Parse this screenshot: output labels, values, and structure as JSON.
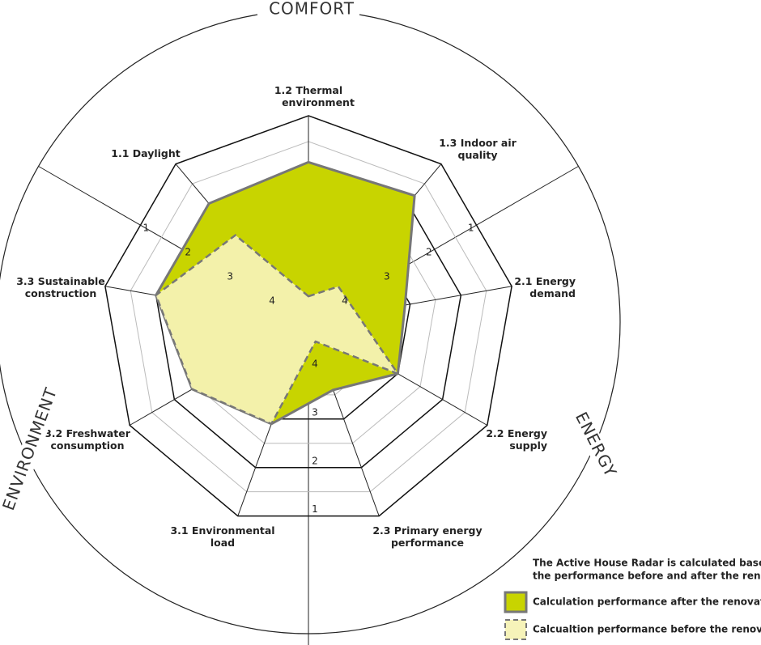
{
  "chart_data": {
    "type": "radar",
    "categories": [
      [
        "1.2 Thermal",
        "environment"
      ],
      [
        "1.3 Indoor air",
        "quality"
      ],
      [
        "2.1 Energy",
        "demand"
      ],
      [
        "2.2 Energy",
        "supply"
      ],
      [
        "2.3 Primary energy",
        "performance"
      ],
      [
        "3.1 Environmental",
        "load"
      ],
      [
        "3.2 Freshwater",
        "consumption"
      ],
      [
        "3.3 Sustainable",
        "construction"
      ],
      [
        "1.1 Daylight"
      ]
    ],
    "groups": [
      "COMFORT",
      "ENERGY",
      "ENVIRONMENT"
    ],
    "rlim": [
      5,
      1
    ],
    "rticks": [
      1,
      2,
      3,
      4
    ],
    "rminor": [
      1.5,
      2.5,
      3.5,
      4.5
    ],
    "series": [
      {
        "name": "Calculation performance after the renovation",
        "color": "#c8d400",
        "values": [
          1.9,
          1.8,
          3.1,
          3.0,
          3.6,
          2.9,
          2.4,
          2.0,
          2.0
        ]
      },
      {
        "name": "Calcualtion performance before the renovation",
        "color": "#f6f3b9",
        "values": [
          4.5,
          4.1,
          4.05,
          3.0,
          4.6,
          2.9,
          2.4,
          2.0,
          2.8
        ]
      }
    ],
    "legend_note": [
      "The Active House Radar is calculated based on",
      "the performance before and after the renovation."
    ]
  }
}
